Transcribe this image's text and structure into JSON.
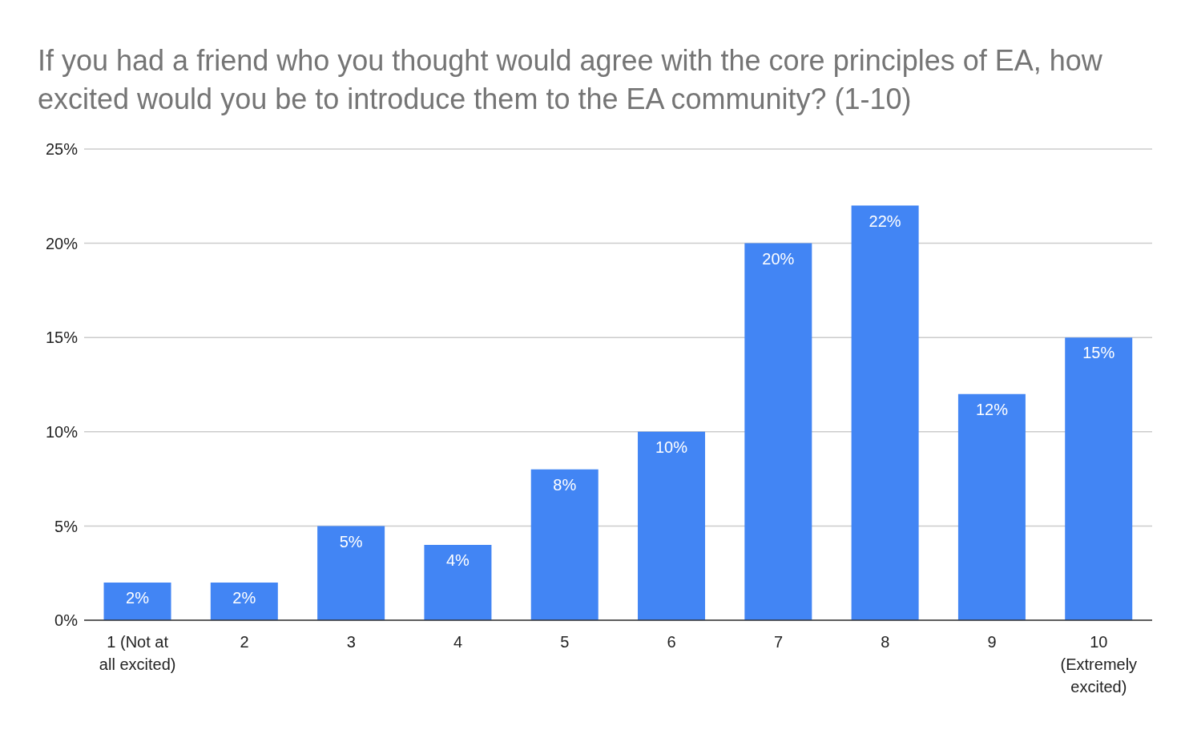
{
  "chart_data": {
    "type": "bar",
    "title": "If you had a friend who you thought would agree with the core principles of EA, how excited would you be to introduce them to the EA community? (1-10)",
    "categories": [
      "1 (Not at all excited)",
      "2",
      "3",
      "4",
      "5",
      "6",
      "7",
      "8",
      "9",
      "10 (Extremely excited)"
    ],
    "values": [
      2,
      2,
      5,
      4,
      8,
      10,
      20,
      22,
      12,
      15
    ],
    "value_labels": [
      "2%",
      "2%",
      "5%",
      "4%",
      "8%",
      "10%",
      "20%",
      "22%",
      "12%",
      "15%"
    ],
    "color": "#4285f4",
    "ylim": [
      0,
      25
    ],
    "yticks": [
      {
        "value": 0,
        "label": "0%"
      },
      {
        "value": 5,
        "label": "5%"
      },
      {
        "value": 10,
        "label": "10%"
      },
      {
        "value": 15,
        "label": "15%"
      },
      {
        "value": 20,
        "label": "20%"
      },
      {
        "value": 25,
        "label": "25%"
      }
    ],
    "grid": "y"
  }
}
